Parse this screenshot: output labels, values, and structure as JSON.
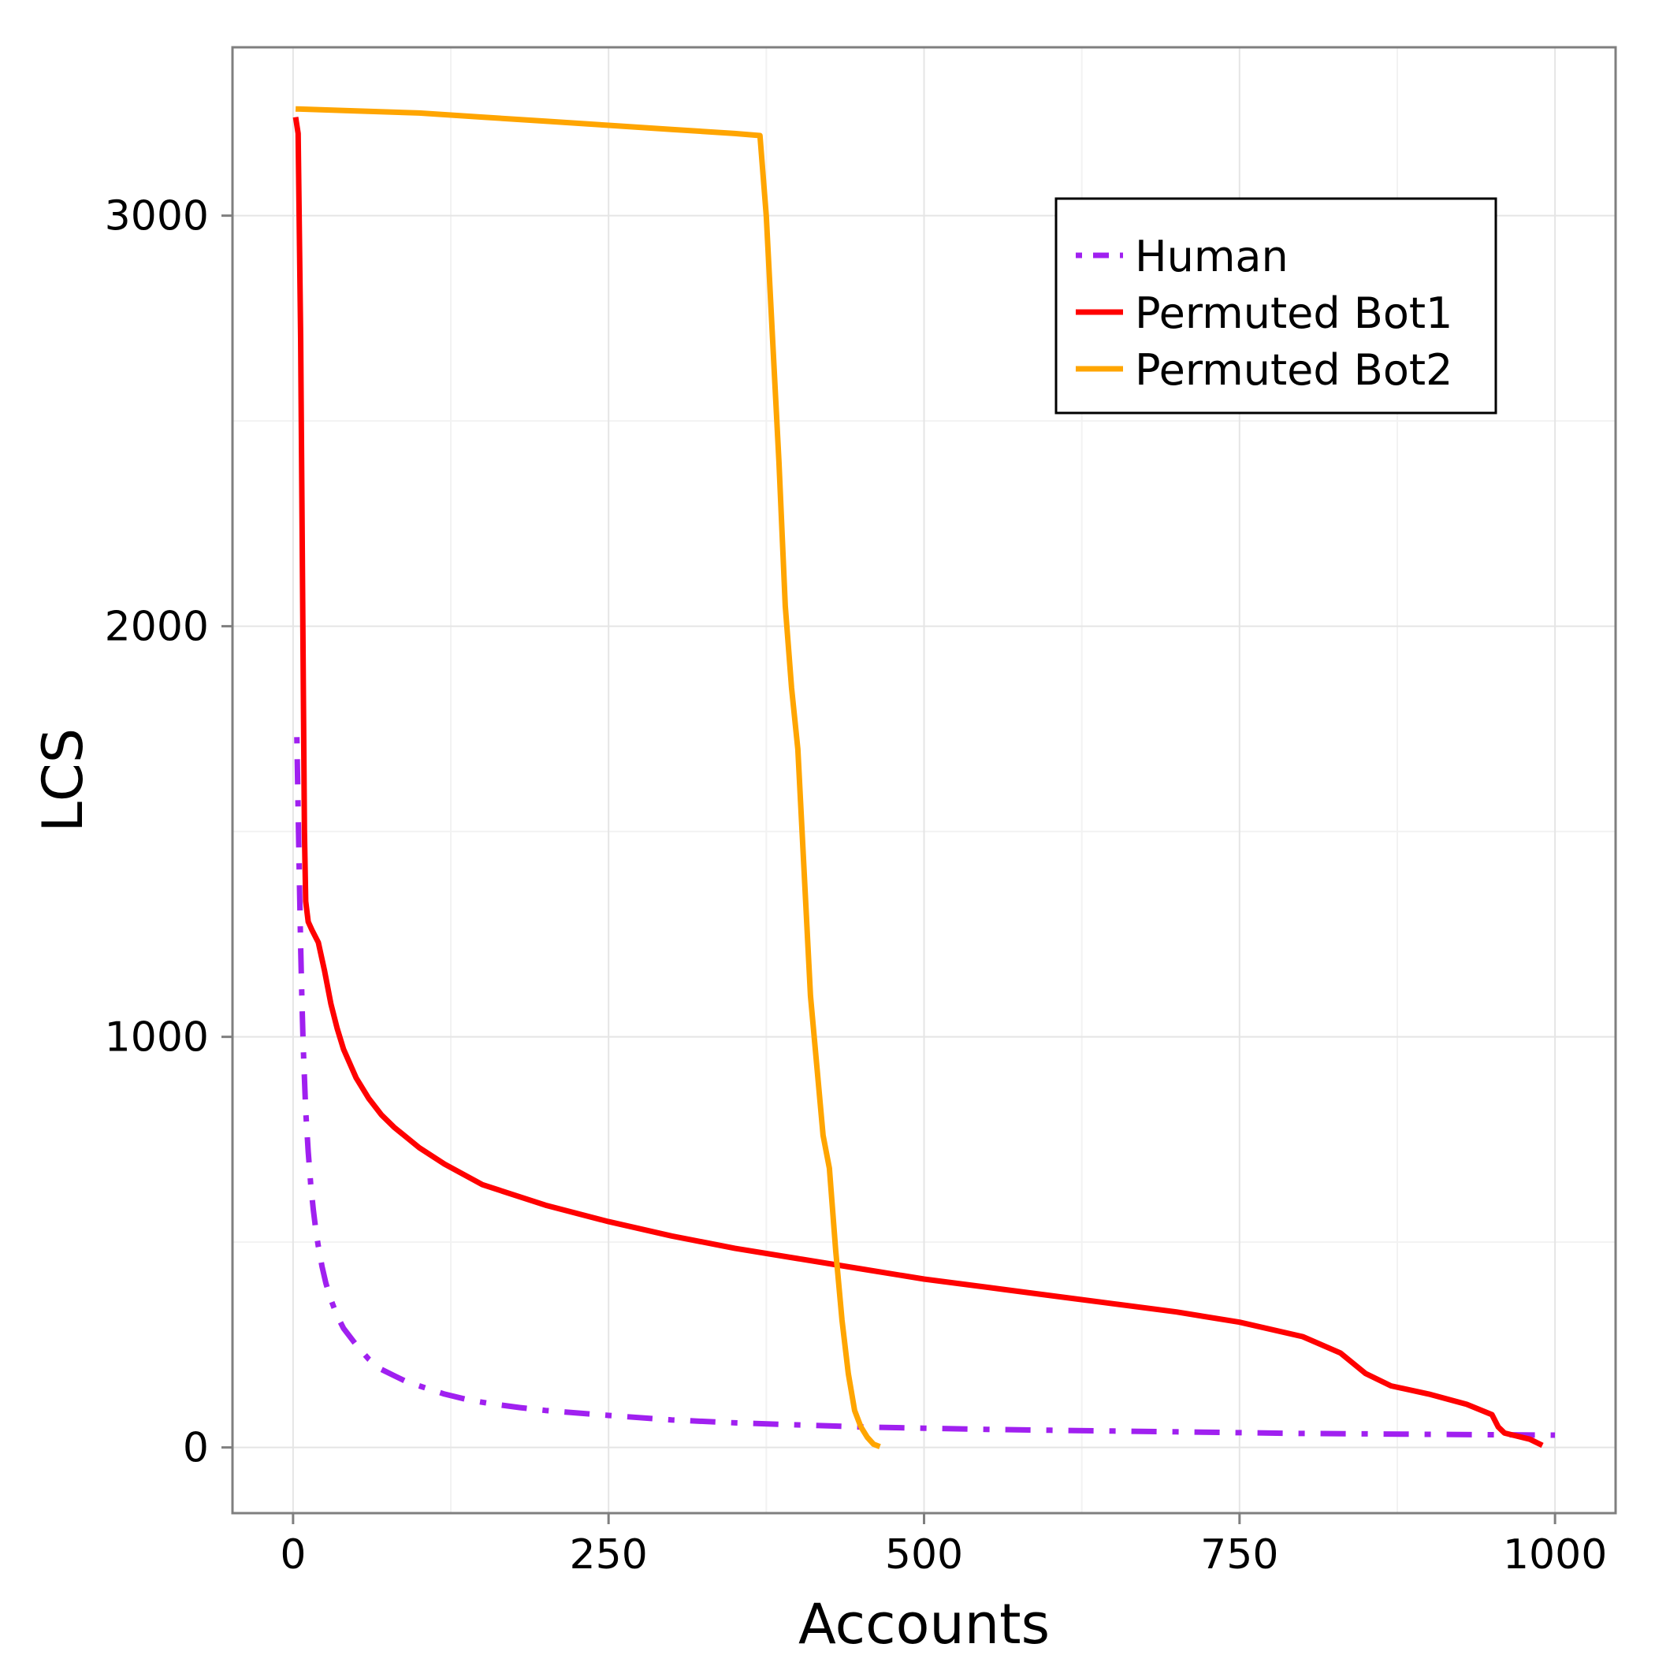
{
  "chart_data": {
    "type": "line",
    "title": "",
    "xlabel": "Accounts",
    "ylabel": "LCS",
    "xlim": [
      -48,
      1048
    ],
    "ylim": [
      -160,
      3410
    ],
    "x_ticks": [
      0,
      250,
      500,
      750,
      1000
    ],
    "x_tick_labels": [
      "0",
      "250",
      "500",
      "750",
      "1000"
    ],
    "y_ticks": [
      0,
      1000,
      2000,
      3000
    ],
    "y_tick_labels": [
      "0",
      "1000",
      "2000",
      "3000"
    ],
    "grid": true,
    "legend": {
      "placement": "top-right"
    },
    "series": [
      {
        "name": "Human",
        "color": "#a020f0",
        "dash": "dotdash",
        "x": [
          3,
          4,
          5,
          6,
          7,
          8,
          9,
          10,
          12,
          14,
          16,
          18,
          20,
          23,
          26,
          30,
          35,
          40,
          50,
          60,
          70,
          80,
          90,
          100,
          120,
          140,
          160,
          180,
          200,
          250,
          300,
          350,
          400,
          450,
          500,
          550,
          600,
          650,
          700,
          750,
          800,
          850,
          900,
          950,
          1000
        ],
        "y": [
          1730,
          1550,
          1380,
          1220,
          1090,
          980,
          900,
          820,
          720,
          640,
          580,
          530,
          490,
          440,
          400,
          360,
          320,
          290,
          250,
          215,
          190,
          175,
          160,
          150,
          130,
          115,
          105,
          97,
          90,
          78,
          67,
          60,
          55,
          50,
          47,
          44,
          42,
          40,
          38,
          36,
          34,
          33,
          32,
          31,
          30
        ]
      },
      {
        "name": "Permuted Bot1",
        "color": "#ff0000",
        "dash": "solid",
        "x": [
          2,
          4,
          6,
          7,
          8,
          9,
          10,
          12,
          15,
          20,
          25,
          30,
          35,
          40,
          50,
          60,
          70,
          80,
          100,
          120,
          150,
          200,
          250,
          300,
          350,
          400,
          450,
          500,
          550,
          600,
          650,
          700,
          750,
          800,
          830,
          850,
          870,
          900,
          930,
          950,
          955,
          960,
          980,
          990
        ],
        "y": [
          3240,
          3200,
          2700,
          2300,
          1900,
          1500,
          1330,
          1280,
          1260,
          1230,
          1160,
          1080,
          1020,
          970,
          900,
          850,
          810,
          780,
          730,
          690,
          640,
          590,
          550,
          515,
          485,
          460,
          435,
          410,
          390,
          370,
          350,
          330,
          305,
          270,
          230,
          180,
          150,
          130,
          105,
          80,
          50,
          35,
          20,
          5
        ]
      },
      {
        "name": "Permuted Bot2",
        "color": "#ffa500",
        "dash": "solid",
        "x": [
          2,
          50,
          100,
          150,
          200,
          250,
          300,
          350,
          370,
          375,
          380,
          385,
          390,
          395,
          400,
          405,
          410,
          415,
          420,
          425,
          430,
          435,
          440,
          445,
          450,
          455,
          460,
          465
        ],
        "y": [
          3260,
          3255,
          3250,
          3240,
          3230,
          3220,
          3210,
          3200,
          3195,
          3000,
          2700,
          2400,
          2050,
          1850,
          1700,
          1400,
          1100,
          930,
          760,
          680,
          480,
          310,
          180,
          90,
          50,
          25,
          8,
          2
        ]
      }
    ]
  }
}
